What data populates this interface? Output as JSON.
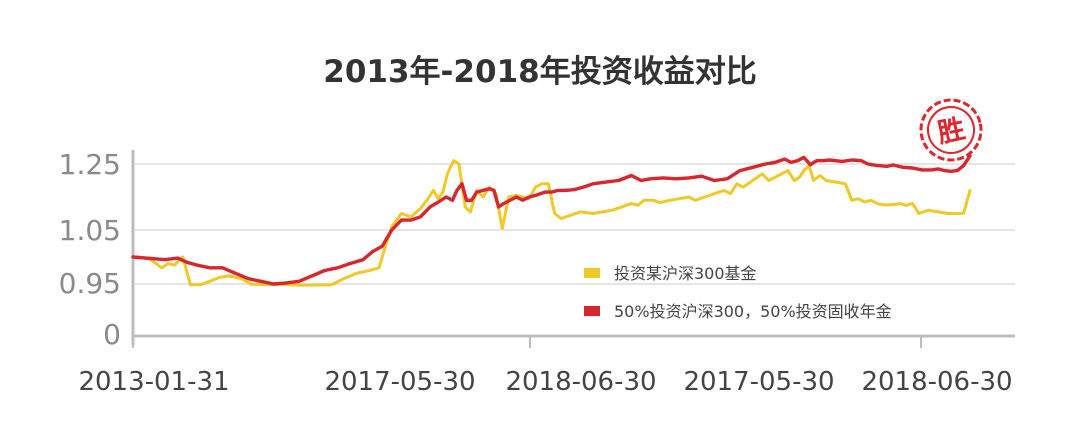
{
  "chart_data": {
    "type": "line",
    "title": "2013年-2018年投资收益对比",
    "xlabel": "",
    "ylabel": "",
    "x_tick_labels": [
      "2013-01-31",
      "2017-05-30",
      "2018-06-30",
      "2017-05-30",
      "2018-06-30"
    ],
    "y_tick_labels": [
      "1.25",
      "1.05",
      "0.95",
      "0"
    ],
    "grid": true,
    "legend_position": "bottom-right, inside plot",
    "stamp": {
      "text": "胜",
      "color": "#e0252c"
    },
    "colors": {
      "series_a": "#f0c929",
      "series_b": "#d7262d",
      "grid": "#e6e6e6",
      "axis": "#bdbdbd",
      "tick_text": "#8a8a8a",
      "title": "#333333"
    },
    "series": [
      {
        "name": "投资某沪深300基金",
        "color": "#f0c929",
        "values": [
          [
            0.0,
            1.0
          ],
          [
            2.5,
            0.997
          ],
          [
            4.5,
            0.98
          ],
          [
            5.5,
            0.988
          ],
          [
            6.5,
            0.985
          ],
          [
            7.8,
            1.0
          ],
          [
            9.0,
            0.935
          ],
          [
            10.5,
            0.935
          ],
          [
            12.0,
            0.955
          ],
          [
            13.5,
            0.962
          ],
          [
            15.0,
            0.965
          ],
          [
            17.0,
            0.96
          ],
          [
            18.5,
            0.945
          ],
          [
            20.0,
            0.94
          ],
          [
            22.0,
            0.94
          ],
          [
            23.5,
            0.945
          ],
          [
            24.5,
            0.935
          ],
          [
            26.0,
            0.93
          ],
          [
            27.5,
            0.93
          ],
          [
            29.0,
            0.932
          ],
          [
            31.0,
            0.934
          ],
          [
            33.0,
            0.96
          ],
          [
            35.0,
            0.97
          ],
          [
            37.0,
            0.975
          ],
          [
            38.5,
            0.98
          ],
          [
            39.5,
            1.02
          ],
          [
            40.5,
            1.06
          ],
          [
            42.0,
            1.1
          ],
          [
            43.5,
            1.09
          ],
          [
            45.0,
            1.115
          ],
          [
            46.0,
            1.14
          ],
          [
            47.0,
            1.17
          ],
          [
            47.8,
            1.145
          ],
          [
            48.5,
            1.165
          ],
          [
            49.2,
            1.22
          ],
          [
            50.2,
            1.26
          ],
          [
            51.0,
            1.25
          ],
          [
            52.0,
            1.12
          ],
          [
            52.8,
            1.105
          ],
          [
            53.8,
            1.17
          ],
          [
            54.8,
            1.15
          ],
          [
            55.8,
            1.18
          ],
          [
            56.8,
            1.16
          ],
          [
            57.8,
            1.055
          ],
          [
            58.8,
            1.15
          ],
          [
            60.0,
            1.155
          ],
          [
            61.0,
            1.15
          ],
          [
            62.0,
            1.145
          ],
          [
            63.0,
            1.18
          ],
          [
            64.0,
            1.19
          ],
          [
            65.0,
            1.19
          ],
          [
            66.0,
            1.1
          ],
          [
            67.0,
            1.085
          ],
          [
            68.5,
            1.095
          ],
          [
            70.0,
            1.105
          ],
          [
            72.0,
            1.1
          ],
          [
            73.5,
            1.105
          ],
          [
            75.0,
            1.11
          ],
          [
            76.5,
            1.12
          ],
          [
            78.0,
            1.13
          ],
          [
            79.0,
            1.125
          ],
          [
            80.0,
            1.14
          ],
          [
            81.5,
            1.14
          ],
          [
            82.5,
            1.133
          ],
          [
            84.0,
            1.14
          ],
          [
            85.5,
            1.145
          ],
          [
            87.0,
            1.15
          ],
          [
            88.0,
            1.14
          ],
          [
            89.5,
            1.15
          ],
          [
            91.0,
            1.16
          ],
          [
            92.5,
            1.17
          ],
          [
            93.5,
            1.16
          ],
          [
            94.5,
            1.19
          ],
          [
            95.5,
            1.18
          ],
          [
            97.0,
            1.2
          ],
          [
            98.5,
            1.22
          ],
          [
            99.5,
            1.2
          ],
          [
            100.5,
            1.21
          ],
          [
            101.5,
            1.22
          ],
          [
            102.5,
            1.23
          ],
          [
            103.5,
            1.2
          ],
          [
            104.3,
            1.21
          ],
          [
            105.0,
            1.23
          ],
          [
            105.8,
            1.245
          ],
          [
            106.5,
            1.2
          ],
          [
            107.5,
            1.215
          ],
          [
            108.5,
            1.2
          ],
          [
            110.0,
            1.195
          ],
          [
            111.5,
            1.19
          ],
          [
            112.5,
            1.14
          ],
          [
            113.5,
            1.145
          ],
          [
            114.5,
            1.135
          ],
          [
            115.5,
            1.14
          ],
          [
            116.5,
            1.13
          ],
          [
            117.5,
            1.126
          ],
          [
            119.0,
            1.127
          ],
          [
            120.0,
            1.13
          ],
          [
            121.0,
            1.125
          ],
          [
            122.0,
            1.13
          ],
          [
            123.0,
            1.1
          ],
          [
            124.5,
            1.11
          ],
          [
            126.0,
            1.105
          ],
          [
            127.5,
            1.1
          ],
          [
            129.0,
            1.1
          ],
          [
            130.0,
            1.101
          ],
          [
            131.0,
            1.17
          ]
        ]
      },
      {
        "name": "50%投资沪深300，50%投资固收年金",
        "color": "#d7262d",
        "values": [
          [
            0.0,
            1.0
          ],
          [
            3.0,
            0.997
          ],
          [
            5.0,
            0.995
          ],
          [
            7.0,
            0.998
          ],
          [
            8.5,
            0.99
          ],
          [
            10.0,
            0.985
          ],
          [
            12.0,
            0.98
          ],
          [
            14.0,
            0.98
          ],
          [
            16.0,
            0.97
          ],
          [
            18.0,
            0.96
          ],
          [
            20.0,
            0.955
          ],
          [
            22.0,
            0.95
          ],
          [
            24.0,
            0.952
          ],
          [
            26.0,
            0.955
          ],
          [
            28.0,
            0.965
          ],
          [
            30.0,
            0.975
          ],
          [
            32.0,
            0.98
          ],
          [
            34.0,
            0.988
          ],
          [
            36.0,
            0.995
          ],
          [
            37.5,
            1.01
          ],
          [
            39.0,
            1.02
          ],
          [
            40.5,
            1.05
          ],
          [
            42.0,
            1.08
          ],
          [
            43.5,
            1.08
          ],
          [
            45.0,
            1.09
          ],
          [
            46.5,
            1.12
          ],
          [
            47.8,
            1.135
          ],
          [
            49.0,
            1.15
          ],
          [
            50.0,
            1.14
          ],
          [
            50.7,
            1.17
          ],
          [
            51.5,
            1.19
          ],
          [
            52.2,
            1.14
          ],
          [
            53.0,
            1.14
          ],
          [
            53.8,
            1.165
          ],
          [
            54.8,
            1.17
          ],
          [
            55.8,
            1.175
          ],
          [
            56.5,
            1.17
          ],
          [
            57.2,
            1.12
          ],
          [
            58.0,
            1.13
          ],
          [
            59.0,
            1.14
          ],
          [
            60.0,
            1.15
          ],
          [
            61.0,
            1.14
          ],
          [
            62.0,
            1.15
          ],
          [
            63.0,
            1.155
          ],
          [
            64.5,
            1.165
          ],
          [
            65.5,
            1.165
          ],
          [
            66.5,
            1.17
          ],
          [
            67.5,
            1.17
          ],
          [
            69.0,
            1.172
          ],
          [
            70.5,
            1.18
          ],
          [
            72.0,
            1.19
          ],
          [
            74.0,
            1.195
          ],
          [
            76.0,
            1.2
          ],
          [
            78.0,
            1.215
          ],
          [
            79.5,
            1.2
          ],
          [
            81.0,
            1.205
          ],
          [
            83.0,
            1.208
          ],
          [
            85.0,
            1.205
          ],
          [
            87.0,
            1.208
          ],
          [
            89.0,
            1.213
          ],
          [
            91.0,
            1.2
          ],
          [
            93.0,
            1.205
          ],
          [
            95.0,
            1.23
          ],
          [
            97.0,
            1.24
          ],
          [
            99.0,
            1.25
          ],
          [
            100.5,
            1.255
          ],
          [
            102.0,
            1.265
          ],
          [
            103.0,
            1.255
          ],
          [
            104.0,
            1.26
          ],
          [
            105.0,
            1.27
          ],
          [
            106.0,
            1.248
          ],
          [
            107.0,
            1.26
          ],
          [
            108.0,
            1.26
          ],
          [
            109.0,
            1.262
          ],
          [
            110.0,
            1.26
          ],
          [
            111.0,
            1.258
          ],
          [
            112.5,
            1.262
          ],
          [
            114.0,
            1.26
          ],
          [
            115.0,
            1.25
          ],
          [
            116.5,
            1.245
          ],
          [
            118.0,
            1.243
          ],
          [
            119.0,
            1.247
          ],
          [
            120.5,
            1.24
          ],
          [
            122.0,
            1.238
          ],
          [
            123.5,
            1.232
          ],
          [
            125.0,
            1.232
          ],
          [
            126.0,
            1.235
          ],
          [
            127.0,
            1.23
          ],
          [
            128.0,
            1.228
          ],
          [
            129.0,
            1.23
          ],
          [
            130.0,
            1.245
          ],
          [
            131.0,
            1.275
          ]
        ]
      }
    ]
  }
}
